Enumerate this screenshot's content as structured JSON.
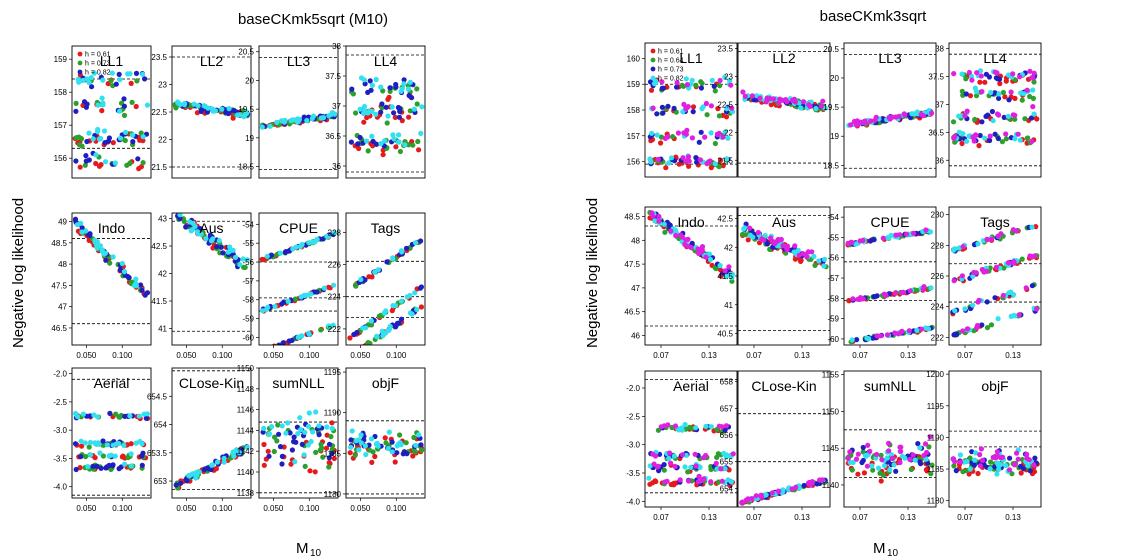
{
  "figure": {
    "xlabel_main": "M",
    "xlabel_sub": "10",
    "ylabel": "Negative log likelihood"
  },
  "chart_data": [
    {
      "type": "scatter",
      "title": "baseCKmk5sqrt (M10)",
      "xlim": [
        0.03,
        0.14
      ],
      "xticks": [
        0.05,
        0.1
      ],
      "xtick_labels": [
        "0.050",
        "0.100"
      ],
      "legend": {
        "position": "top-left",
        "entries": [
          "h = 0.61",
          "h = 0.73",
          "h = 0.82"
        ]
      },
      "series_colors": [
        "#e41a1c",
        "#2ca02c",
        "#1f1fbf",
        "#33e0f0"
      ],
      "panels": [
        {
          "name": "LL1",
          "ylim": [
            155.4,
            159.4
          ],
          "yticks": [
            156,
            157,
            158,
            159
          ],
          "hlines": [
            156.3,
            158.4
          ],
          "bands": [
            [
              158.4,
              0.3
            ],
            [
              157.6,
              0.3
            ],
            [
              156.6,
              0.3
            ],
            [
              155.9,
              0.3
            ]
          ],
          "trend": 0
        },
        {
          "name": "LL2",
          "ylim": [
            21.3,
            23.7
          ],
          "yticks": [
            21.5,
            22.0,
            22.5,
            23.0,
            23.5
          ],
          "hlines": [
            21.5,
            23.5
          ],
          "bands": [
            [
              22.55,
              0.1
            ]
          ],
          "trend": -0.25
        },
        {
          "name": "LL3",
          "ylim": [
            18.3,
            20.6
          ],
          "yticks": [
            18.5,
            19.0,
            19.5,
            20.0,
            20.5
          ],
          "hlines": [
            18.45,
            20.4
          ],
          "bands": [
            [
              19.3,
              0.06
            ]
          ],
          "trend": 0.25
        },
        {
          "name": "LL4",
          "ylim": [
            35.8,
            38.0
          ],
          "yticks": [
            36.0,
            36.5,
            37.0,
            37.5,
            38.0
          ],
          "hlines": [
            35.9,
            37.85
          ],
          "bands": [
            [
              37.3,
              0.2
            ],
            [
              36.9,
              0.2
            ],
            [
              36.4,
              0.2
            ]
          ],
          "trend": 0
        },
        {
          "name": "Indo",
          "ylim": [
            46.1,
            49.2
          ],
          "yticks": [
            46.5,
            47.0,
            47.5,
            48.0,
            48.5,
            49.0
          ],
          "hlines": [
            46.6,
            48.6
          ],
          "bands": [
            [
              48.1,
              0.18
            ]
          ],
          "trend": -1.7
        },
        {
          "name": "Aus",
          "ylim": [
            40.7,
            43.1
          ],
          "yticks": [
            41.0,
            41.5,
            42.0,
            42.5,
            43.0
          ],
          "hlines": [
            40.95,
            42.95
          ],
          "bands": [
            [
              42.6,
              0.18
            ]
          ],
          "trend": -1.3
        },
        {
          "name": "CPUE",
          "ylim": [
            -60.4,
            -53.4
          ],
          "yticks": [
            -60,
            -59,
            -58,
            -57,
            -56,
            -55,
            -54
          ],
          "hlines": [
            -56.0,
            -57.9,
            -58.6
          ],
          "bands": [
            [
              -55.2,
              0.1
            ],
            [
              -57.9,
              0.1
            ],
            [
              -60.0,
              0.1
            ]
          ],
          "trend": 0.6
        },
        {
          "name": "Tags",
          "ylim": [
            221.0,
            229.2
          ],
          "yticks": [
            222,
            224,
            226,
            228
          ],
          "hlines": [
            226.2,
            224.0,
            222.7
          ],
          "bands": [
            [
              226.0,
              0.2
            ],
            [
              223.0,
              0.2
            ],
            [
              221.8,
              0.2
            ]
          ],
          "trend": 1.2
        },
        {
          "name": "Aerial",
          "ylim": [
            -4.2,
            -1.9
          ],
          "yticks": [
            -4.0,
            -3.5,
            -3.0,
            -2.5,
            -2.0
          ],
          "hlines": [
            -4.15,
            -2.1
          ],
          "bands": [
            [
              -2.75,
              0.06
            ],
            [
              -3.25,
              0.06
            ],
            [
              -3.45,
              0.06
            ],
            [
              -3.65,
              0.06
            ]
          ],
          "trend": 0
        },
        {
          "name": "CLose-Kin",
          "ylim": [
            652.7,
            655.0
          ],
          "yticks": [
            653.0,
            653.5,
            654.0,
            654.5
          ],
          "hlines": [
            652.85,
            654.95
          ],
          "bands": [
            [
              653.25,
              0.1
            ]
          ],
          "trend": 0.9
        },
        {
          "name": "sumNLL",
          "ylim": [
            1137.5,
            1150.0
          ],
          "yticks": [
            1138,
            1140,
            1142,
            1144,
            1146,
            1148,
            1150
          ],
          "hlines": [
            1138.0,
            1144.8
          ],
          "bands": [
            [
              1143.0,
              3.0
            ]
          ],
          "trend": 0
        },
        {
          "name": "objF",
          "ylim": [
            1179.5,
            1195.5
          ],
          "yticks": [
            1180,
            1185,
            1190,
            1195
          ],
          "hlines": [
            1180.0,
            1189.0
          ],
          "bands": [
            [
              1186.0,
              2.5
            ]
          ],
          "trend": 0
        }
      ]
    },
    {
      "type": "scatter",
      "title": "baseCKmk3sqrt",
      "xlim": [
        0.05,
        0.165
      ],
      "xticks": [
        0.07,
        0.13
      ],
      "xtick_labels": [
        "0.07",
        "0.13"
      ],
      "legend": {
        "position": "top-left",
        "entries": [
          "h = 0.61",
          "h = 0.64",
          "h = 0.73",
          "h = 0.82"
        ]
      },
      "series_colors": [
        "#e41a1c",
        "#2ca02c",
        "#1f1fbf",
        "#33e0f0",
        "#e020e0"
      ],
      "panels": [
        {
          "name": "LL1",
          "ylim": [
            155.4,
            160.6
          ],
          "yticks": [
            156,
            157,
            158,
            159,
            160
          ],
          "hlines": [
            155.9,
            159.0
          ],
          "bands": [
            [
              159.0,
              0.3
            ],
            [
              158.0,
              0.3
            ],
            [
              157.0,
              0.3
            ],
            [
              156.0,
              0.3
            ]
          ],
          "trend": 0
        },
        {
          "name": "LL2",
          "ylim": [
            21.2,
            23.6
          ],
          "yticks": [
            21.5,
            22.0,
            22.5,
            23.0,
            23.5
          ],
          "hlines": [
            21.45,
            23.45
          ],
          "bands": [
            [
              22.55,
              0.1
            ]
          ],
          "trend": -0.25
        },
        {
          "name": "LL3",
          "ylim": [
            18.3,
            20.6
          ],
          "yticks": [
            18.5,
            19.0,
            19.5,
            20.0,
            20.5
          ],
          "hlines": [
            18.45,
            20.4
          ],
          "bands": [
            [
              19.3,
              0.06
            ]
          ],
          "trend": 0.3
        },
        {
          "name": "LL4",
          "ylim": [
            35.7,
            38.1
          ],
          "yticks": [
            36.0,
            36.5,
            37.0,
            37.5,
            38.0
          ],
          "hlines": [
            35.9,
            37.9
          ],
          "bands": [
            [
              37.5,
              0.15
            ],
            [
              37.2,
              0.15
            ],
            [
              36.8,
              0.15
            ],
            [
              36.4,
              0.15
            ]
          ],
          "trend": 0
        },
        {
          "name": "Indo",
          "ylim": [
            45.8,
            48.7
          ],
          "yticks": [
            46.0,
            46.5,
            47.0,
            47.5,
            48.0,
            48.5
          ],
          "hlines": [
            46.2,
            48.3
          ],
          "bands": [
            [
              47.9,
              0.18
            ]
          ],
          "trend": -1.5
        },
        {
          "name": "Aus",
          "ylim": [
            40.3,
            42.7
          ],
          "yticks": [
            40.5,
            41.0,
            41.5,
            42.0,
            42.5
          ],
          "hlines": [
            40.55,
            42.55
          ],
          "bands": [
            [
              42.0,
              0.15
            ]
          ],
          "trend": -0.8
        },
        {
          "name": "CPUE",
          "ylim": [
            -60.3,
            -53.5
          ],
          "yticks": [
            -60,
            -59,
            -58,
            -57,
            -56,
            -55,
            -54
          ],
          "hlines": [
            -56.2,
            -58.1
          ],
          "bands": [
            [
              -55.0,
              0.1
            ],
            [
              -57.8,
              0.1
            ],
            [
              -59.8,
              0.1
            ]
          ],
          "trend": 0.3
        },
        {
          "name": "Tags",
          "ylim": [
            221.5,
            230.5
          ],
          "yticks": [
            222,
            224,
            226,
            228,
            230
          ],
          "hlines": [
            224.3,
            226.8
          ],
          "bands": [
            [
              228.5,
              0.2
            ],
            [
              226.5,
              0.2
            ],
            [
              224.5,
              0.2
            ],
            [
              223.0,
              0.2
            ]
          ],
          "trend": 0.6
        },
        {
          "name": "Aerial",
          "ylim": [
            -4.1,
            -1.7
          ],
          "yticks": [
            -4.0,
            -3.5,
            -3.0,
            -2.5,
            -2.0
          ],
          "hlines": [
            -3.85,
            -1.85
          ],
          "bands": [
            [
              -2.7,
              0.08
            ],
            [
              -3.2,
              0.08
            ],
            [
              -3.4,
              0.08
            ],
            [
              -3.65,
              0.08
            ]
          ],
          "trend": 0
        },
        {
          "name": "CLose-Kin",
          "ylim": [
            653.3,
            658.4
          ],
          "yticks": [
            654,
            655,
            656,
            657,
            658
          ],
          "hlines": [
            655.0,
            656.8
          ],
          "bands": [
            [
              653.9,
              0.1
            ]
          ],
          "trend": 0.5
        },
        {
          "name": "sumNLL",
          "ylim": [
            1137.0,
            1155.5
          ],
          "yticks": [
            1140,
            1145,
            1150,
            1155
          ],
          "hlines": [
            1141.0,
            1147.5
          ],
          "bands": [
            [
              1143.5,
              2.8
            ]
          ],
          "trend": 0
        },
        {
          "name": "objF",
          "ylim": [
            1179.0,
            1200.5
          ],
          "yticks": [
            1180,
            1185,
            1190,
            1195,
            1200
          ],
          "hlines": [
            1188.5,
            1191.0
          ],
          "bands": [
            [
              1186.0,
              2.5
            ]
          ],
          "trend": 0
        }
      ]
    }
  ]
}
